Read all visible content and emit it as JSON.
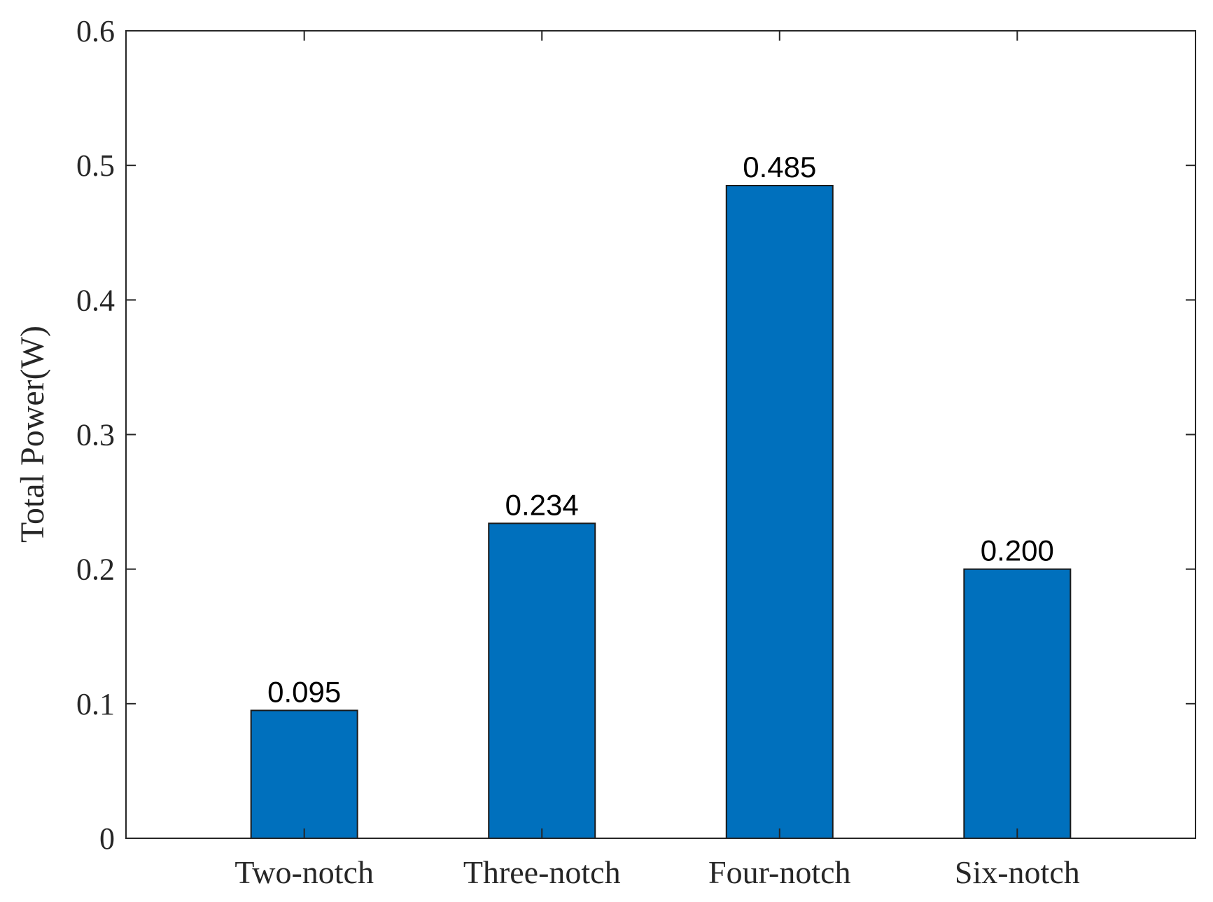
{
  "chart_data": {
    "type": "bar",
    "categories": [
      "Two-notch",
      "Three-notch",
      "Four-notch",
      "Six-notch"
    ],
    "values": [
      0.095,
      0.234,
      0.485,
      0.2
    ],
    "data_labels": [
      "0.095",
      "0.234",
      "0.485",
      "0.200"
    ],
    "title": "",
    "xlabel": "",
    "ylabel": "Total Power(W)",
    "ylim": [
      0,
      0.6
    ],
    "yticks": [
      "0",
      "0.1",
      "0.2",
      "0.3",
      "0.4",
      "0.5",
      "0.6"
    ],
    "grid": false,
    "bar_color": "#0070BD"
  }
}
